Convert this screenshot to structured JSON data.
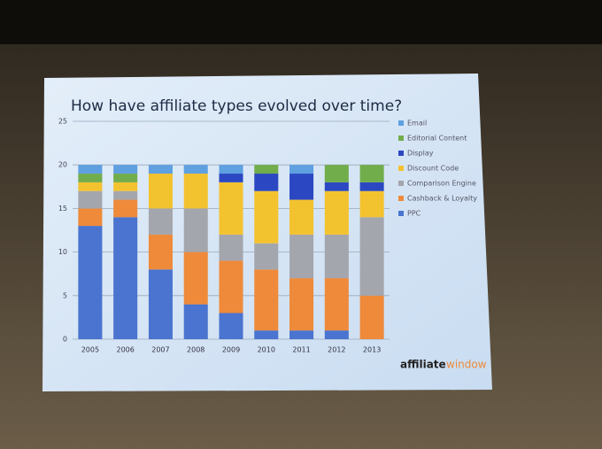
{
  "chart_data": {
    "type": "stacked-bar",
    "title": "How have affiliate types evolved over time?",
    "categories": [
      "2005",
      "2006",
      "2007",
      "2008",
      "2009",
      "2010",
      "2011",
      "2012",
      "2013"
    ],
    "series": [
      {
        "name": "PPC",
        "color": "#4a74cf",
        "values": [
          13,
          14,
          8,
          4,
          3,
          1,
          1,
          1,
          0
        ]
      },
      {
        "name": "Cashback & Loyalty",
        "color": "#ee8a3a",
        "values": [
          2,
          2,
          4,
          6,
          6,
          7,
          6,
          6,
          5
        ]
      },
      {
        "name": "Comparison Engine",
        "color": "#a4a6ad",
        "values": [
          2,
          1,
          3,
          5,
          3,
          3,
          5,
          5,
          9
        ]
      },
      {
        "name": "Discount Code",
        "color": "#f3c22f",
        "values": [
          1,
          1,
          4,
          4,
          6,
          6,
          4,
          5,
          3
        ]
      },
      {
        "name": "Display",
        "color": "#2b48c2",
        "values": [
          0,
          0,
          0,
          0,
          1,
          2,
          3,
          1,
          1
        ]
      },
      {
        "name": "Editorial Content",
        "color": "#72ad4c",
        "values": [
          1,
          1,
          0,
          0,
          0,
          1,
          0,
          2,
          2
        ]
      },
      {
        "name": "Email",
        "color": "#5fa0e0",
        "values": [
          1,
          1,
          1,
          1,
          1,
          0,
          1,
          0,
          0
        ]
      }
    ],
    "ylim": [
      0,
      25
    ],
    "yticks": [
      0,
      5,
      10,
      15,
      20,
      25
    ],
    "grid": true,
    "legend": "right"
  },
  "logo": [
    "affiliate",
    "window"
  ]
}
